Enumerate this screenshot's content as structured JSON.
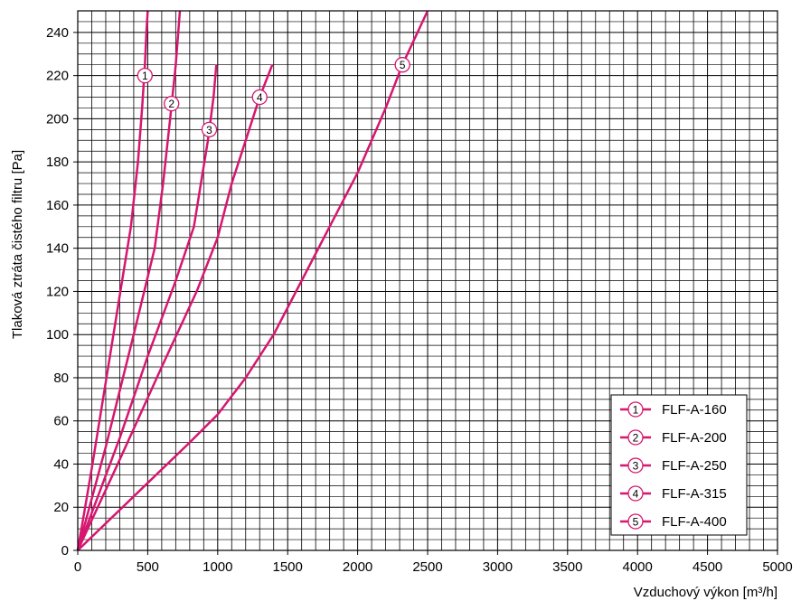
{
  "chart_data": {
    "type": "line",
    "title": "",
    "xlabel": "Vzduchový výkon [m³/h]",
    "ylabel": "Tlaková ztráta čistého filtru [Pa]",
    "xlim": [
      0,
      5000
    ],
    "ylim": [
      0,
      250
    ],
    "xticks": [
      "0",
      "500",
      "1000",
      "1500",
      "2000",
      "2500",
      "3000",
      "3500",
      "4000",
      "4500",
      "5000"
    ],
    "yticks": [
      "0",
      "20",
      "40",
      "60",
      "80",
      "100",
      "120",
      "140",
      "160",
      "180",
      "200",
      "220",
      "240"
    ],
    "grid": true,
    "legend_position": "bottom-right",
    "line_color": "#d6166f",
    "series": [
      {
        "name": "FLF-A-160",
        "marker": "1",
        "marker_at": [
          480,
          220
        ],
        "points": [
          [
            0,
            0
          ],
          [
            100,
            38
          ],
          [
            200,
            78
          ],
          [
            300,
            118
          ],
          [
            380,
            150
          ],
          [
            430,
            180
          ],
          [
            460,
            205
          ],
          [
            480,
            225
          ],
          [
            490,
            240
          ],
          [
            500,
            250
          ]
        ]
      },
      {
        "name": "FLF-A-200",
        "marker": "2",
        "marker_at": [
          670,
          207
        ],
        "points": [
          [
            0,
            0
          ],
          [
            200,
            48
          ],
          [
            400,
            100
          ],
          [
            550,
            140
          ],
          [
            610,
            170
          ],
          [
            660,
            200
          ],
          [
            700,
            225
          ],
          [
            730,
            250
          ]
        ]
      },
      {
        "name": "FLF-A-250",
        "marker": "3",
        "marker_at": [
          940,
          195
        ],
        "points": [
          [
            0,
            0
          ],
          [
            300,
            52
          ],
          [
            500,
            90
          ],
          [
            700,
            125
          ],
          [
            830,
            150
          ],
          [
            880,
            170
          ],
          [
            930,
            190
          ],
          [
            970,
            210
          ],
          [
            990,
            225
          ]
        ]
      },
      {
        "name": "FLF-A-315",
        "marker": "4",
        "marker_at": [
          1300,
          210
        ],
        "points": [
          [
            0,
            0
          ],
          [
            300,
            42
          ],
          [
            600,
            85
          ],
          [
            850,
            120
          ],
          [
            1000,
            145
          ],
          [
            1100,
            170
          ],
          [
            1200,
            190
          ],
          [
            1300,
            210
          ],
          [
            1390,
            225
          ]
        ]
      },
      {
        "name": "FLF-A-400",
        "marker": "5",
        "marker_at": [
          2320,
          225
        ],
        "points": [
          [
            0,
            0
          ],
          [
            400,
            25
          ],
          [
            800,
            50
          ],
          [
            1000,
            63
          ],
          [
            1200,
            80
          ],
          [
            1400,
            100
          ],
          [
            1600,
            125
          ],
          [
            1800,
            150
          ],
          [
            2000,
            175
          ],
          [
            2200,
            205
          ],
          [
            2320,
            225
          ],
          [
            2500,
            250
          ]
        ]
      }
    ]
  }
}
